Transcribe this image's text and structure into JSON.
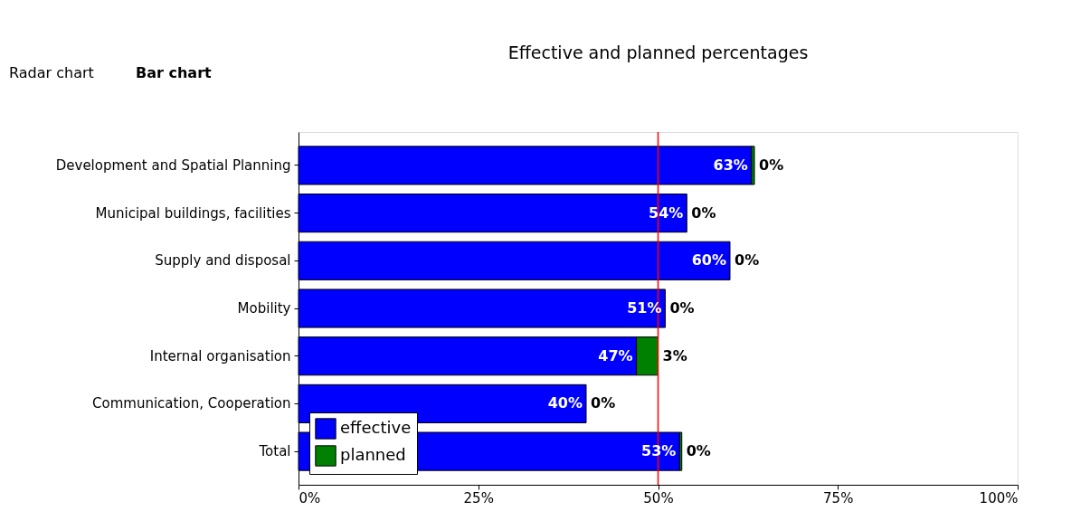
{
  "chart_data": {
    "type": "bar",
    "orientation": "horizontal",
    "stacked": true,
    "title": "Effective and planned percentages",
    "categories": [
      "Development and Spatial Planning",
      "Municipal buildings, facilities",
      "Supply and disposal",
      "Mobility",
      "Internal organisation",
      "Communication, Cooperation",
      "Total"
    ],
    "series": [
      {
        "name": "effective",
        "color": "#0000ff",
        "values": [
          63,
          54,
          60,
          51,
          47,
          40,
          53
        ],
        "value_labels": [
          "63%",
          "54%",
          "60%",
          "51%",
          "47%",
          "40%",
          "53%"
        ]
      },
      {
        "name": "planned",
        "color": "#008000",
        "values": [
          0.4,
          0,
          0,
          0,
          3,
          0,
          0.3
        ],
        "value_labels": [
          "0%",
          "0%",
          "0%",
          "0%",
          "3%",
          "0%",
          "0%"
        ]
      }
    ],
    "xlim": [
      0,
      100
    ],
    "xticks": [
      {
        "value": 0,
        "label": "0%"
      },
      {
        "value": 25,
        "label": "25%"
      },
      {
        "value": 50,
        "label": "50%"
      },
      {
        "value": 75,
        "label": "75%"
      },
      {
        "value": 100,
        "label": "100%"
      }
    ],
    "ref_lines": [
      {
        "axis": "x",
        "value": 50,
        "color": "#ff0000"
      }
    ],
    "legend": "bottom left",
    "grid": false,
    "annotations": [
      "Radar chart",
      "Bar chart"
    ]
  }
}
